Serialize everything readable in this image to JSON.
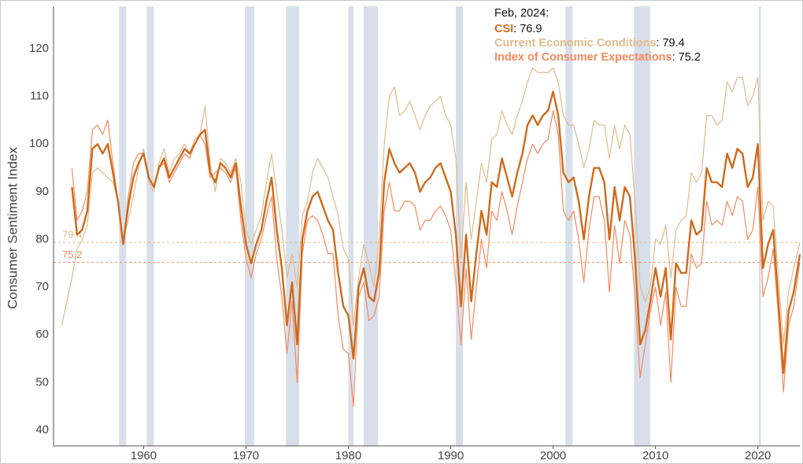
{
  "chart_data": {
    "type": "line",
    "y_label": "Consumer Sentiment Index",
    "xlim": [
      1951.2,
      2024.1
    ],
    "ylim": [
      36.7,
      128.9
    ],
    "xticks": [
      1960,
      1970,
      1980,
      1990,
      2000,
      2010,
      2020
    ],
    "yticks": [
      40,
      50,
      60,
      70,
      80,
      90,
      100,
      110,
      120
    ],
    "x": [
      1952.0,
      1952.5,
      1953.0,
      1953.5,
      1954.0,
      1954.5,
      1955.0,
      1955.5,
      1956.0,
      1956.5,
      1957.0,
      1957.5,
      1958.0,
      1958.5,
      1959.0,
      1959.5,
      1960.0,
      1960.5,
      1961.0,
      1961.5,
      1962.0,
      1962.5,
      1963.0,
      1963.5,
      1964.0,
      1964.5,
      1965.0,
      1965.5,
      1966.0,
      1966.5,
      1967.0,
      1967.5,
      1968.0,
      1968.5,
      1969.0,
      1969.5,
      1970.0,
      1970.5,
      1971.0,
      1971.5,
      1972.0,
      1972.5,
      1973.0,
      1973.5,
      1974.0,
      1974.5,
      1975.0,
      1975.5,
      1976.0,
      1976.5,
      1977.0,
      1977.5,
      1978.0,
      1978.5,
      1979.0,
      1979.5,
      1980.0,
      1980.5,
      1981.0,
      1981.5,
      1982.0,
      1982.5,
      1983.0,
      1983.5,
      1984.0,
      1984.5,
      1985.0,
      1985.5,
      1986.0,
      1986.5,
      1987.0,
      1987.5,
      1988.0,
      1988.5,
      1989.0,
      1989.5,
      1990.0,
      1990.5,
      1991.0,
      1991.5,
      1992.0,
      1992.5,
      1993.0,
      1993.5,
      1994.0,
      1994.5,
      1995.0,
      1995.5,
      1996.0,
      1996.5,
      1997.0,
      1997.5,
      1998.0,
      1998.5,
      1999.0,
      1999.5,
      2000.0,
      2000.5,
      2001.0,
      2001.5,
      2002.0,
      2002.5,
      2003.0,
      2003.5,
      2004.0,
      2004.5,
      2005.0,
      2005.5,
      2006.0,
      2006.5,
      2007.0,
      2007.5,
      2008.0,
      2008.5,
      2009.0,
      2009.5,
      2010.0,
      2010.5,
      2011.0,
      2011.5,
      2012.0,
      2012.5,
      2013.0,
      2013.5,
      2014.0,
      2014.5,
      2015.0,
      2015.5,
      2016.0,
      2016.5,
      2017.0,
      2017.5,
      2018.0,
      2018.5,
      2019.0,
      2019.5,
      2020.0,
      2020.5,
      2021.0,
      2021.5,
      2022.0,
      2022.5,
      2023.0,
      2023.5,
      2024.1
    ],
    "series": [
      {
        "name": "Current Economic Conditions",
        "color": "#e2ba8c",
        "width": 1.2,
        "values": [
          62,
          67,
          72,
          78,
          80,
          83,
          94,
          95,
          94,
          93,
          92,
          88,
          80,
          84,
          89,
          95,
          99,
          92,
          90,
          96,
          99,
          94,
          97,
          98,
          100,
          98,
          101,
          102,
          108,
          96,
          90,
          97,
          96,
          94,
          97,
          92,
          82,
          79,
          82,
          85,
          92,
          98,
          90,
          82,
          72,
          77,
          70,
          85,
          88,
          94,
          97,
          95,
          93,
          89,
          85,
          78,
          76,
          62,
          72,
          79,
          75,
          70,
          80,
          100,
          110,
          112,
          106,
          107,
          109,
          106,
          103,
          106,
          108,
          109,
          110,
          106,
          104,
          97,
          76,
          92,
          80,
          88,
          96,
          92,
          101,
          102,
          107,
          104,
          102,
          106,
          109,
          113,
          116,
          115,
          115,
          115,
          116,
          113,
          106,
          104,
          104,
          100,
          95,
          99,
          105,
          104,
          104,
          97,
          104,
          99,
          104,
          102,
          88,
          70,
          67,
          70,
          80,
          79,
          83,
          72,
          82,
          84,
          85,
          94,
          92,
          94,
          106,
          106,
          104,
          105,
          113,
          111,
          114,
          114,
          108,
          110,
          114,
          84,
          88,
          87,
          72,
          58,
          69,
          74,
          79.4
        ]
      },
      {
        "name": "Index of Consumer Expectations",
        "color": "#f58a5e",
        "width": 1.2,
        "values": [
          null,
          null,
          95,
          84,
          86,
          90,
          103,
          104,
          102,
          105,
          96,
          88,
          79,
          89,
          96,
          98,
          98,
          93,
          91,
          95,
          96,
          92,
          94,
          96,
          98,
          97,
          100,
          102,
          100,
          93,
          94,
          95,
          94,
          92,
          95,
          84,
          76,
          72,
          77,
          80,
          85,
          89,
          76,
          68,
          56,
          67,
          50,
          77,
          84,
          85,
          84,
          81,
          77,
          77,
          64,
          57,
          56,
          45,
          68,
          71,
          63,
          64,
          68,
          86,
          92,
          86,
          86,
          88,
          88,
          87,
          82,
          84,
          84,
          86,
          87,
          85,
          82,
          71,
          58,
          74,
          59,
          70,
          80,
          74,
          86,
          84,
          90,
          86,
          81,
          87,
          92,
          97,
          100,
          98,
          100,
          101,
          107,
          102,
          86,
          84,
          86,
          80,
          71,
          82,
          89,
          89,
          84,
          69,
          83,
          75,
          84,
          81,
          68,
          51,
          58,
          65,
          70,
          62,
          69,
          50,
          70,
          66,
          66,
          77,
          74,
          75,
          88,
          83,
          84,
          83,
          88,
          85,
          89,
          88,
          80,
          82,
          91,
          68,
          72,
          78,
          64,
          48,
          62,
          66,
          75.2
        ]
      },
      {
        "name": "CSI",
        "color": "#cf6a1c",
        "width": 2.4,
        "values": [
          null,
          null,
          91,
          81,
          82,
          86,
          99,
          100,
          98,
          100,
          94,
          88,
          79,
          87,
          93,
          96,
          98,
          93,
          91,
          95,
          97,
          93,
          95,
          97,
          99,
          98,
          100,
          102,
          103,
          94,
          92,
          96,
          95,
          93,
          96,
          87,
          79,
          75,
          79,
          82,
          88,
          93,
          82,
          74,
          62,
          71,
          58,
          80,
          86,
          89,
          90,
          87,
          84,
          82,
          73,
          66,
          64,
          55,
          70,
          74,
          68,
          67,
          73,
          92,
          99,
          96,
          94,
          95,
          96,
          94,
          90,
          92,
          93,
          95,
          96,
          93,
          90,
          81,
          66,
          81,
          67,
          77,
          86,
          81,
          92,
          91,
          97,
          93,
          89,
          94,
          98,
          104,
          106,
          104,
          106,
          107,
          111,
          106,
          94,
          92,
          93,
          88,
          80,
          89,
          95,
          95,
          92,
          80,
          91,
          84,
          91,
          89,
          76,
          58,
          61,
          67,
          74,
          68,
          74,
          59,
          75,
          73,
          73,
          84,
          81,
          82,
          95,
          92,
          92,
          91,
          98,
          95,
          99,
          98,
          91,
          93,
          100,
          74,
          79,
          82,
          67,
          52,
          65,
          69,
          76.9
        ]
      }
    ],
    "recessions": [
      [
        1957.6,
        1958.3
      ],
      [
        1960.3,
        1961.0
      ],
      [
        1969.9,
        1970.8
      ],
      [
        1973.9,
        1975.2
      ],
      [
        1980.0,
        1980.5
      ],
      [
        1981.5,
        1982.9
      ],
      [
        1990.5,
        1991.2
      ],
      [
        2001.2,
        2001.9
      ],
      [
        2007.9,
        2009.5
      ],
      [
        2020.1,
        2020.3
      ]
    ],
    "recession_color": "#d7dfea",
    "reference_lines": [
      {
        "value": 79.4,
        "color": "#e2ba8c"
      },
      {
        "value": 75.2,
        "color": "#f58a5e"
      }
    ],
    "annotation": {
      "title": "Feb, 2024:",
      "items": [
        {
          "series": 2,
          "text": ": 76.9"
        },
        {
          "series": 0,
          "text": ": 79.4"
        },
        {
          "series": 1,
          "text": ": 75.2"
        }
      ]
    }
  }
}
